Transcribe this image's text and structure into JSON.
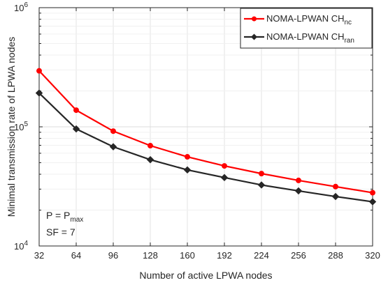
{
  "chart_data": {
    "type": "line",
    "xlabel": "Number of active LPWA nodes",
    "ylabel": "Minimal transmission rate of LPWA nodes",
    "x": [
      32,
      64,
      96,
      128,
      160,
      192,
      224,
      256,
      288,
      320
    ],
    "xlim": [
      32,
      320
    ],
    "ylim": [
      10000,
      1000000
    ],
    "yscale": "log",
    "grid": true,
    "legend_position": "top-right",
    "x_ticks": [
      "32",
      "64",
      "96",
      "128",
      "160",
      "192",
      "224",
      "256",
      "288",
      "320"
    ],
    "y_ticks": [
      {
        "base": "10",
        "exp": "4",
        "value": 10000
      },
      {
        "base": "10",
        "exp": "5",
        "value": 100000
      },
      {
        "base": "10",
        "exp": "6",
        "value": 1000000
      }
    ],
    "series": [
      {
        "name_main": "NOMA-LPWAN CH",
        "name_sub": "nc",
        "color": "#ff0000",
        "marker": "circle",
        "values": [
          295000,
          138000,
          92000,
          69500,
          56000,
          47000,
          40500,
          35500,
          31500,
          28000
        ]
      },
      {
        "name_main": "NOMA-LPWAN CH",
        "name_sub": "ran",
        "color": "#262626",
        "marker": "diamond",
        "values": [
          192000,
          96000,
          68000,
          53000,
          43500,
          37500,
          32500,
          29000,
          26000,
          23500
        ]
      }
    ],
    "annotations": [
      {
        "main": "P = P",
        "sub": "max"
      },
      {
        "main": "SF = 7",
        "sub": ""
      }
    ]
  }
}
